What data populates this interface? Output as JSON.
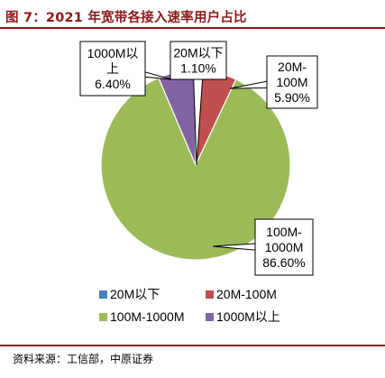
{
  "title": "图 7：2021 年宽带各接入速率用户占比",
  "source": "资料来源：工信部，中原证券",
  "chart_data": {
    "type": "pie",
    "categories": [
      "20M以下",
      "20M-100M",
      "100M-1000M",
      "1000M以上"
    ],
    "values": [
      1.1,
      5.9,
      86.6,
      6.4
    ],
    "labels": [
      [
        "20M以下",
        "1.10%"
      ],
      [
        "20M-",
        "100M",
        "5.90%"
      ],
      [
        "100M-",
        "1000M",
        "86.60%"
      ],
      [
        "1000M以",
        "上",
        "6.40%"
      ]
    ],
    "colors": [
      "#4a7ebb",
      "#c0504d",
      "#9bbb59",
      "#8064a2"
    ],
    "legend": {
      "placement": "bottom"
    }
  }
}
